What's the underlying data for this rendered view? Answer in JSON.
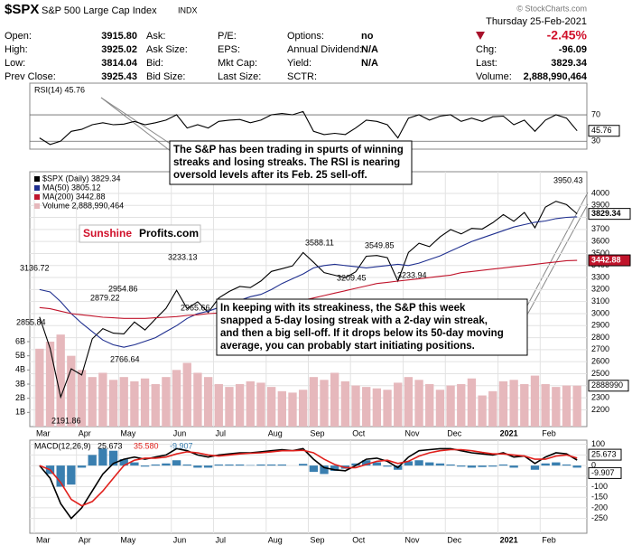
{
  "header": {
    "symbol": "$SPX",
    "name": "S&P 500 Large Cap Index",
    "exchange": "INDX",
    "copyright": "© StockCharts.com",
    "date": "Thursday 25-Feb-2021",
    "change_pct": "-2.45%",
    "quote": [
      [
        [
          "Open:",
          "3915.80"
        ],
        [
          "High:",
          "3925.02"
        ],
        [
          "Low:",
          "3814.04"
        ],
        [
          "Prev Close:",
          "3925.43"
        ]
      ],
      [
        [
          "Ask:"
        ],
        [
          "Ask Size:"
        ],
        [
          "Bid:"
        ],
        [
          "Bid Size:"
        ]
      ],
      [
        [
          "P/E:"
        ],
        [
          "EPS:"
        ],
        [
          "Mkt Cap:"
        ],
        [
          "Last Size:"
        ]
      ],
      [
        [
          "Options:",
          "no"
        ],
        [
          "Annual Dividend:",
          "N/A"
        ],
        [
          "Yield:",
          "N/A"
        ],
        [
          "SCTR:"
        ]
      ],
      [
        [
          "Chg:",
          "-96.09"
        ],
        [
          "Last:",
          "3829.34"
        ],
        [
          "Volume:",
          "2,888,990,464"
        ]
      ]
    ]
  },
  "annotations": [
    {
      "lines": [
        "The S&P has been trading in spurts of winning",
        "streaks and losing streaks. The RSI is nearing",
        "oversold levels after its Feb. 25 sell-off."
      ]
    },
    {
      "lines": [
        "In keeping with its streakiness, the S&P this week",
        "snapped a 5-day losing streak with a 2-day win streak,",
        "and then a big sell-off. If it drops below its 50-day moving",
        "average, you can probably start initiating positions."
      ]
    }
  ],
  "logo": [
    "Sunshine",
    "Profits.com"
  ],
  "chart_data": [
    {
      "type": "line",
      "title": "RSI(14) 45.76",
      "categories": [
        "Mar",
        null,
        null,
        null,
        "Apr",
        null,
        null,
        null,
        "May",
        null,
        null,
        null,
        null,
        "Jun",
        null,
        null,
        null,
        "Jul",
        null,
        null,
        null,
        null,
        "Aug",
        null,
        null,
        null,
        "Sep",
        null,
        null,
        null,
        "Oct",
        null,
        null,
        null,
        null,
        "Nov",
        null,
        null,
        null,
        "Dec",
        null,
        null,
        null,
        null,
        "2021",
        null,
        null,
        null,
        "Feb",
        null,
        null,
        null
      ],
      "series": [
        {
          "name": "RSI(14)",
          "color": "#000000",
          "values": [
            35,
            25,
            30,
            45,
            48,
            55,
            58,
            55,
            56,
            60,
            55,
            58,
            62,
            70,
            50,
            55,
            50,
            60,
            62,
            63,
            58,
            62,
            70,
            72,
            70,
            75,
            45,
            40,
            42,
            40,
            50,
            62,
            60,
            55,
            35,
            65,
            70,
            62,
            68,
            70,
            60,
            65,
            60,
            67,
            68,
            55,
            62,
            45,
            62,
            70,
            65,
            45.76
          ]
        }
      ],
      "ylim": [
        18,
        118
      ],
      "yticks": [
        30,
        70
      ]
    },
    {
      "type": "line",
      "categories": [
        "Mar",
        null,
        null,
        null,
        "Apr",
        null,
        null,
        null,
        "May",
        null,
        null,
        null,
        null,
        "Jun",
        null,
        null,
        null,
        "Jul",
        null,
        null,
        null,
        null,
        "Aug",
        null,
        null,
        null,
        "Sep",
        null,
        null,
        null,
        "Oct",
        null,
        null,
        null,
        null,
        "Nov",
        null,
        null,
        null,
        "Dec",
        null,
        null,
        null,
        null,
        "2021",
        null,
        null,
        null,
        "Feb",
        null,
        null,
        null
      ],
      "series": [
        {
          "name": "$SPX (Daily) 3829.34",
          "color": "#000000",
          "values": [
            2972,
            2711,
            2305,
            2541,
            2489,
            2790,
            2875,
            2837,
            2831,
            2930,
            2864,
            2955,
            3044,
            3194,
            3041,
            3098,
            3009,
            3130,
            3185,
            3225,
            3216,
            3271,
            3351,
            3373,
            3397,
            3508,
            3427,
            3341,
            3319,
            3298,
            3348,
            3477,
            3483,
            3465,
            3270,
            3509,
            3585,
            3557,
            3638,
            3699,
            3663,
            3709,
            3703,
            3756,
            3824,
            3768,
            3841,
            3714,
            3886,
            3934,
            3906,
            3829.34
          ]
        },
        {
          "name": "MA(50) 3805.12",
          "color": "#1f2f8f",
          "values": [
            3200,
            3180,
            3100,
            3000,
            2920,
            2850,
            2780,
            2740,
            2720,
            2740,
            2770,
            2800,
            2850,
            2900,
            2960,
            3000,
            3020,
            3050,
            3080,
            3110,
            3140,
            3160,
            3200,
            3250,
            3290,
            3330,
            3380,
            3400,
            3410,
            3400,
            3390,
            3380,
            3390,
            3400,
            3410,
            3400,
            3420,
            3450,
            3480,
            3520,
            3560,
            3600,
            3630,
            3660,
            3690,
            3720,
            3740,
            3760,
            3770,
            3790,
            3800,
            3805.12
          ]
        },
        {
          "name": "MA(200) 3442.88",
          "color": "#c0142b",
          "values": [
            3050,
            3040,
            3020,
            3000,
            2990,
            2980,
            2970,
            2965,
            2960,
            2960,
            2960,
            2965,
            2970,
            2975,
            2985,
            2990,
            3000,
            3005,
            3010,
            3020,
            3030,
            3040,
            3050,
            3070,
            3090,
            3110,
            3130,
            3150,
            3170,
            3190,
            3210,
            3230,
            3250,
            3260,
            3270,
            3280,
            3290,
            3300,
            3310,
            3320,
            3340,
            3350,
            3360,
            3370,
            3380,
            3390,
            3400,
            3410,
            3420,
            3430,
            3440,
            3442.88
          ]
        },
        {
          "name": "Volume 2,888,990,464",
          "type": "bar",
          "axis": "y2",
          "color": "#e6b8bc",
          "values": [
            5.5,
            6.0,
            6.5,
            5.0,
            4.0,
            3.5,
            3.8,
            3.3,
            3.5,
            3.2,
            3.4,
            3.0,
            3.5,
            4.0,
            4.5,
            3.8,
            3.5,
            3.0,
            2.8,
            3.0,
            3.2,
            3.1,
            2.8,
            2.5,
            2.4,
            2.6,
            3.5,
            3.3,
            3.8,
            3.2,
            2.9,
            2.8,
            2.7,
            2.6,
            3.1,
            3.5,
            3.3,
            3.0,
            2.6,
            2.9,
            3.0,
            3.4,
            2.2,
            2.5,
            3.2,
            3.3,
            3.0,
            3.6,
            3.0,
            2.8,
            2.9,
            2.888990464
          ]
        }
      ],
      "ylim": [
        2060,
        4180
      ],
      "yticks": [
        2200,
        2300,
        2400,
        2500,
        2600,
        2700,
        2800,
        2900,
        3000,
        3100,
        3200,
        3300,
        3400,
        3500,
        3600,
        3700,
        3800,
        3900,
        4000
      ],
      "y2lim": [
        0,
        18
      ],
      "y2ticks": [
        {
          "value": 1,
          "label": "1B"
        },
        {
          "value": 2,
          "label": "2B"
        },
        {
          "value": 3,
          "label": "3B"
        },
        {
          "value": 4,
          "label": "4B"
        },
        {
          "value": 5,
          "label": "5B"
        },
        {
          "value": 6,
          "label": "6B"
        }
      ],
      "volume_axis_label": "2888990",
      "price_labels": [
        3136.72,
        2855.84,
        2191.86,
        2879.22,
        2954.86,
        2766.64,
        3233.13,
        2965.66,
        3588.11,
        3209.45,
        3549.85,
        3233.94,
        3950.43
      ]
    },
    {
      "type": "line",
      "title": "MACD(12,26,9)",
      "legend_values": [
        "25.673",
        "35.580",
        "-9.907"
      ],
      "categories": [
        "Mar",
        null,
        null,
        null,
        "Apr",
        null,
        null,
        null,
        "May",
        null,
        null,
        null,
        null,
        "Jun",
        null,
        null,
        null,
        "Jul",
        null,
        null,
        null,
        null,
        "Aug",
        null,
        null,
        null,
        "Sep",
        null,
        null,
        null,
        "Oct",
        null,
        null,
        null,
        null,
        "Nov",
        null,
        null,
        null,
        "Dec",
        null,
        null,
        null,
        null,
        "2021",
        null,
        null,
        null,
        "Feb",
        null,
        null,
        null
      ],
      "series": [
        {
          "name": "MACD",
          "color": "#000000",
          "values": [
            0,
            -60,
            -180,
            -250,
            -200,
            -120,
            -40,
            10,
            30,
            40,
            30,
            40,
            50,
            80,
            70,
            50,
            40,
            50,
            55,
            60,
            60,
            65,
            70,
            75,
            70,
            80,
            30,
            -10,
            -20,
            -25,
            0,
            30,
            35,
            20,
            -10,
            40,
            70,
            75,
            80,
            80,
            70,
            60,
            55,
            50,
            60,
            40,
            45,
            10,
            40,
            60,
            55,
            25.673
          ]
        },
        {
          "name": "Signal",
          "color": "#e0201c",
          "values": [
            0,
            -20,
            -80,
            -160,
            -190,
            -170,
            -120,
            -60,
            0,
            25,
            35,
            35,
            40,
            55,
            65,
            60,
            50,
            45,
            50,
            55,
            58,
            60,
            65,
            70,
            70,
            72,
            60,
            30,
            5,
            -10,
            -10,
            5,
            20,
            25,
            10,
            20,
            45,
            60,
            70,
            75,
            75,
            70,
            62,
            55,
            55,
            50,
            45,
            30,
            30,
            45,
            50,
            35.58
          ]
        },
        {
          "name": "Histogram",
          "type": "bar",
          "color": "#3a7fb0",
          "values": [
            0,
            -40,
            -100,
            -90,
            -10,
            50,
            80,
            70,
            30,
            15,
            -5,
            5,
            10,
            25,
            5,
            -10,
            -10,
            5,
            5,
            5,
            2,
            5,
            5,
            5,
            0,
            8,
            -30,
            -40,
            -25,
            -15,
            10,
            25,
            15,
            -5,
            -20,
            20,
            25,
            15,
            10,
            5,
            -5,
            -10,
            -7,
            -5,
            5,
            -10,
            0,
            -20,
            10,
            15,
            5,
            -9.907
          ]
        }
      ],
      "ylim": [
        -320,
        120
      ],
      "yticks": [
        100,
        50,
        0,
        -50,
        -100,
        -150,
        -200,
        -250
      ]
    }
  ]
}
